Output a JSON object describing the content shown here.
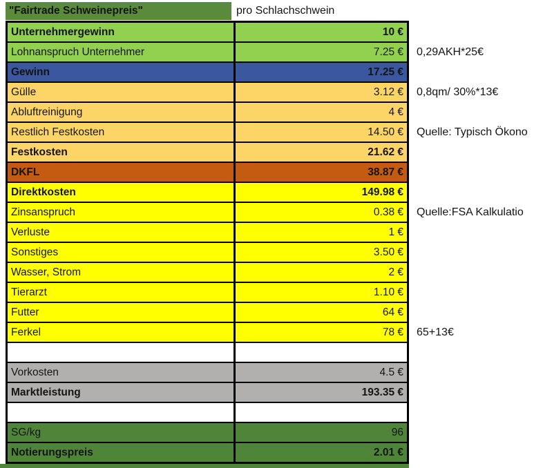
{
  "header": {
    "title": "\"Fairtrade Schweinepreis\"",
    "subtitle": "pro Schlachschwein"
  },
  "colors": {
    "header_green": "#5A8A3C",
    "light_green": "#92D050",
    "blue": "#3A57A0",
    "tan": "#FCD566",
    "dark_orange": "#C55A11",
    "yellow": "#FFFF00",
    "gray": "#B2AFAF",
    "dark_green": "#4F8539",
    "bottom_green": "#4F8539",
    "white": "#FFFFFF"
  },
  "table": {
    "rows": [
      {
        "label": "Unternehmergewinn",
        "value": "10 €",
        "bg": "light_green",
        "bold": true,
        "note": ""
      },
      {
        "label": "Lohnanspruch Unternehmer",
        "value": "7.25 €",
        "bg": "light_green",
        "bold": false,
        "note": "0,29AKH*25€"
      },
      {
        "label": "Gewinn",
        "value": "17.25 €",
        "bg": "blue",
        "bold": true,
        "note": ""
      },
      {
        "label": "Gülle",
        "value": "3.12 €",
        "bg": "tan",
        "bold": false,
        "note": "0,8qm/ 30%*13€"
      },
      {
        "label": "Abluftreinigung",
        "value": "4 €",
        "bg": "tan",
        "bold": false,
        "note": ""
      },
      {
        "label": "Restlich Festkosten",
        "value": "14.50 €",
        "bg": "tan",
        "bold": false,
        "note": "Quelle: Typisch Ökono"
      },
      {
        "label": "Festkosten",
        "value": "21.62 €",
        "bg": "tan",
        "bold": true,
        "note": ""
      },
      {
        "label": "DKFL",
        "value": "38.87 €",
        "bg": "dark_orange",
        "bold": true,
        "note": ""
      },
      {
        "label": "Direktkosten",
        "value": "149.98 €",
        "bg": "yellow",
        "bold": true,
        "note": ""
      },
      {
        "label": "Zinsanspruch",
        "value": "0.38 €",
        "bg": "yellow",
        "bold": false,
        "note": "Quelle:FSA Kalkulatio"
      },
      {
        "label": "Verluste",
        "value": "1 €",
        "bg": "yellow",
        "bold": false,
        "note": ""
      },
      {
        "label": "Sonstiges",
        "value": "3.50 €",
        "bg": "yellow",
        "bold": false,
        "note": ""
      },
      {
        "label": "Wasser, Strom",
        "value": "2 €",
        "bg": "yellow",
        "bold": false,
        "note": ""
      },
      {
        "label": "Tierarzt",
        "value": "1.10 €",
        "bg": "yellow",
        "bold": false,
        "note": ""
      },
      {
        "label": "Futter",
        "value": "64 €",
        "bg": "yellow",
        "bold": false,
        "note": ""
      },
      {
        "label": "Ferkel",
        "value": "78 €",
        "bg": "yellow",
        "bold": false,
        "note": "65+13€"
      },
      {
        "label": "",
        "value": "",
        "bg": "white",
        "bold": false,
        "note": ""
      },
      {
        "label": "Vorkosten",
        "value": "4.5 €",
        "bg": "gray",
        "bold": false,
        "note": ""
      },
      {
        "label": "Marktleistung",
        "value": "193.35 €",
        "bg": "gray",
        "bold": true,
        "note": ""
      },
      {
        "label": "",
        "value": "",
        "bg": "white",
        "bold": false,
        "note": ""
      },
      {
        "label": "SG/kg",
        "value": "96",
        "bg": "dark_green",
        "bold": false,
        "note": ""
      },
      {
        "label": "Notierungspreis",
        "value": "2.01 €",
        "bg": "dark_green",
        "bold": true,
        "note": ""
      }
    ]
  }
}
